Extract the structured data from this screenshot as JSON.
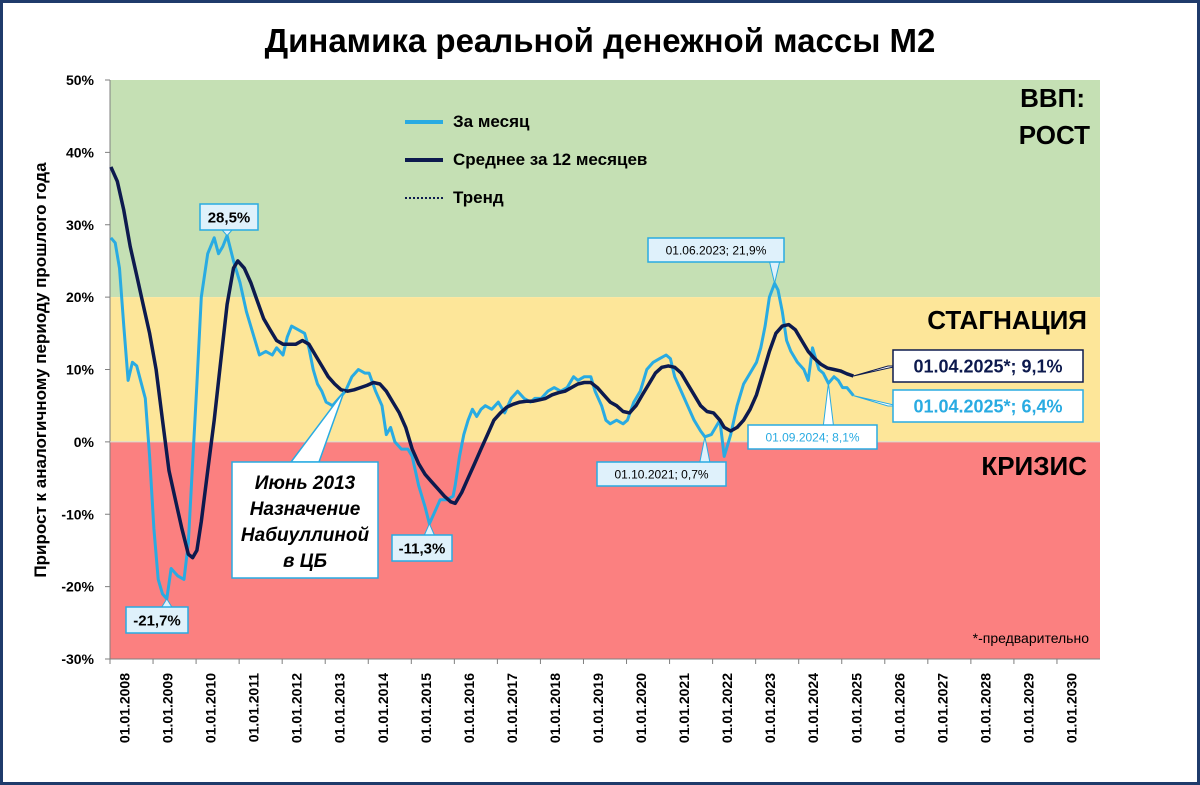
{
  "chart_data": {
    "type": "line",
    "title": "Динамика реальной денежной массы М2",
    "ylabel": "Прирост к аналогичному периоду прошлого года",
    "ylim": [
      -30,
      50
    ],
    "y_ticks": [
      -30,
      -20,
      -10,
      0,
      10,
      20,
      30,
      40,
      50
    ],
    "y_tick_labels": [
      "-30%",
      "-20%",
      "-10%",
      "0%",
      "10%",
      "20%",
      "30%",
      "40%",
      "50%"
    ],
    "x_tick_labels": [
      "01.01.2008",
      "01.01.2009",
      "01.01.2010",
      "01.01.2011",
      "01.01.2012",
      "01.01.2013",
      "01.01.2014",
      "01.01.2015",
      "01.01.2016",
      "01.01.2017",
      "01.01.2018",
      "01.01.2019",
      "01.01.2020",
      "01.01.2021",
      "01.01.2022",
      "01.01.2023",
      "01.01.2024",
      "01.01.2025",
      "01.01.2026",
      "01.01.2027",
      "01.01.2028",
      "01.01.2029",
      "01.01.2030"
    ],
    "zones": [
      {
        "label": "ВВП:",
        "label2": "РОСТ",
        "from": 20,
        "to": 50,
        "color": "#c5e0b4"
      },
      {
        "label": "СТАГНАЦИЯ",
        "from": 0,
        "to": 20,
        "color": "#fde699"
      },
      {
        "label": "КРИЗИС",
        "from": -30,
        "to": 0,
        "color": "#fb8080"
      }
    ],
    "series": [
      {
        "name": "За месяц",
        "color": "#29abe2",
        "points": [
          [
            2008.0,
            28.2
          ],
          [
            2008.1,
            27.5
          ],
          [
            2008.2,
            24.0
          ],
          [
            2008.3,
            16.0
          ],
          [
            2008.4,
            8.5
          ],
          [
            2008.5,
            11.0
          ],
          [
            2008.6,
            10.5
          ],
          [
            2008.8,
            6.0
          ],
          [
            2008.9,
            -2.0
          ],
          [
            2009.0,
            -12.0
          ],
          [
            2009.1,
            -19.0
          ],
          [
            2009.2,
            -21.0
          ],
          [
            2009.3,
            -21.7
          ],
          [
            2009.4,
            -17.5
          ],
          [
            2009.55,
            -18.5
          ],
          [
            2009.7,
            -19.0
          ],
          [
            2009.8,
            -14.0
          ],
          [
            2009.9,
            -3.0
          ],
          [
            2010.0,
            8.0
          ],
          [
            2010.1,
            20.0
          ],
          [
            2010.25,
            26.0
          ],
          [
            2010.4,
            28.2
          ],
          [
            2010.5,
            26.0
          ],
          [
            2010.6,
            27.0
          ],
          [
            2010.7,
            28.5
          ],
          [
            2010.85,
            25.0
          ],
          [
            2011.0,
            22.0
          ],
          [
            2011.15,
            18.0
          ],
          [
            2011.3,
            15.0
          ],
          [
            2011.45,
            12.0
          ],
          [
            2011.6,
            12.5
          ],
          [
            2011.75,
            12.0
          ],
          [
            2011.85,
            13.0
          ],
          [
            2012.0,
            12.0
          ],
          [
            2012.1,
            14.5
          ],
          [
            2012.2,
            16.0
          ],
          [
            2012.35,
            15.5
          ],
          [
            2012.5,
            15.0
          ],
          [
            2012.6,
            13.0
          ],
          [
            2012.7,
            10.0
          ],
          [
            2012.8,
            8.0
          ],
          [
            2012.9,
            7.0
          ],
          [
            2013.0,
            5.5
          ],
          [
            2013.15,
            5.0
          ],
          [
            2013.3,
            6.0
          ],
          [
            2013.45,
            7.0
          ],
          [
            2013.6,
            9.0
          ],
          [
            2013.75,
            10.0
          ],
          [
            2013.9,
            9.5
          ],
          [
            2014.0,
            9.5
          ],
          [
            2014.15,
            7.0
          ],
          [
            2014.3,
            5.0
          ],
          [
            2014.4,
            1.0
          ],
          [
            2014.5,
            2.0
          ],
          [
            2014.6,
            0.0
          ],
          [
            2014.75,
            -1.0
          ],
          [
            2014.9,
            -1.0
          ],
          [
            2015.0,
            -2.0
          ],
          [
            2015.15,
            -6.0
          ],
          [
            2015.3,
            -9.0
          ],
          [
            2015.4,
            -11.3
          ],
          [
            2015.5,
            -10.0
          ],
          [
            2015.65,
            -8.0
          ],
          [
            2015.8,
            -8.0
          ],
          [
            2015.95,
            -7.5
          ],
          [
            2016.0,
            -6.0
          ],
          [
            2016.1,
            -2.0
          ],
          [
            2016.2,
            1.0
          ],
          [
            2016.3,
            3.0
          ],
          [
            2016.4,
            4.5
          ],
          [
            2016.5,
            3.5
          ],
          [
            2016.6,
            4.5
          ],
          [
            2016.7,
            5.0
          ],
          [
            2016.85,
            4.5
          ],
          [
            2017.0,
            5.5
          ],
          [
            2017.15,
            4.0
          ],
          [
            2017.3,
            6.0
          ],
          [
            2017.45,
            7.0
          ],
          [
            2017.6,
            6.0
          ],
          [
            2017.75,
            5.5
          ],
          [
            2017.85,
            6.0
          ],
          [
            2018.0,
            6.0
          ],
          [
            2018.15,
            7.0
          ],
          [
            2018.3,
            7.5
          ],
          [
            2018.45,
            7.0
          ],
          [
            2018.6,
            7.5
          ],
          [
            2018.75,
            9.0
          ],
          [
            2018.85,
            8.5
          ],
          [
            2019.0,
            9.0
          ],
          [
            2019.15,
            9.0
          ],
          [
            2019.25,
            7.0
          ],
          [
            2019.4,
            5.0
          ],
          [
            2019.5,
            3.0
          ],
          [
            2019.6,
            2.5
          ],
          [
            2019.75,
            3.0
          ],
          [
            2019.9,
            2.5
          ],
          [
            2020.0,
            3.0
          ],
          [
            2020.15,
            5.5
          ],
          [
            2020.3,
            7.0
          ],
          [
            2020.45,
            10.0
          ],
          [
            2020.6,
            11.0
          ],
          [
            2020.75,
            11.5
          ],
          [
            2020.9,
            12.0
          ],
          [
            2021.0,
            11.5
          ],
          [
            2021.1,
            9.0
          ],
          [
            2021.25,
            7.0
          ],
          [
            2021.4,
            5.0
          ],
          [
            2021.55,
            3.0
          ],
          [
            2021.7,
            1.5
          ],
          [
            2021.8,
            0.7
          ],
          [
            2021.95,
            1.0
          ],
          [
            2022.05,
            2.0
          ],
          [
            2022.15,
            3.0
          ],
          [
            2022.25,
            -2.0
          ],
          [
            2022.3,
            -1.0
          ],
          [
            2022.4,
            1.0
          ],
          [
            2022.55,
            5.0
          ],
          [
            2022.7,
            8.0
          ],
          [
            2022.85,
            9.5
          ],
          [
            2023.0,
            11.0
          ],
          [
            2023.1,
            13.0
          ],
          [
            2023.2,
            16.0
          ],
          [
            2023.3,
            20.0
          ],
          [
            2023.42,
            21.9
          ],
          [
            2023.5,
            21.0
          ],
          [
            2023.6,
            18.0
          ],
          [
            2023.7,
            14.0
          ],
          [
            2023.8,
            12.5
          ],
          [
            2023.95,
            11.0
          ],
          [
            2024.1,
            10.0
          ],
          [
            2024.2,
            8.5
          ],
          [
            2024.3,
            13.0
          ],
          [
            2024.45,
            10.0
          ],
          [
            2024.55,
            9.5
          ],
          [
            2024.67,
            8.1
          ],
          [
            2024.8,
            9.0
          ],
          [
            2024.9,
            8.5
          ],
          [
            2025.0,
            7.5
          ],
          [
            2025.1,
            7.5
          ],
          [
            2025.25,
            6.4
          ]
        ]
      },
      {
        "name": "Среднее за 12 месяцев",
        "color": "#0d1a4e",
        "points": [
          [
            2008.0,
            38.0
          ],
          [
            2008.15,
            36.0
          ],
          [
            2008.3,
            32.0
          ],
          [
            2008.45,
            27.0
          ],
          [
            2008.6,
            23.0
          ],
          [
            2008.75,
            19.0
          ],
          [
            2008.9,
            15.0
          ],
          [
            2009.05,
            10.0
          ],
          [
            2009.2,
            3.0
          ],
          [
            2009.35,
            -4.0
          ],
          [
            2009.5,
            -8.0
          ],
          [
            2009.65,
            -12.0
          ],
          [
            2009.8,
            -15.5
          ],
          [
            2009.9,
            -16.0
          ],
          [
            2010.0,
            -15.0
          ],
          [
            2010.1,
            -11.0
          ],
          [
            2010.25,
            -4.0
          ],
          [
            2010.4,
            3.0
          ],
          [
            2010.55,
            11.0
          ],
          [
            2010.7,
            19.0
          ],
          [
            2010.85,
            24.0
          ],
          [
            2010.95,
            25.0
          ],
          [
            2011.1,
            24.0
          ],
          [
            2011.25,
            22.0
          ],
          [
            2011.4,
            19.5
          ],
          [
            2011.55,
            17.0
          ],
          [
            2011.7,
            15.5
          ],
          [
            2011.85,
            14.0
          ],
          [
            2012.0,
            13.5
          ],
          [
            2012.15,
            13.5
          ],
          [
            2012.3,
            13.5
          ],
          [
            2012.45,
            14.0
          ],
          [
            2012.6,
            13.5
          ],
          [
            2012.75,
            12.0
          ],
          [
            2012.9,
            10.5
          ],
          [
            2013.05,
            9.0
          ],
          [
            2013.2,
            8.0
          ],
          [
            2013.35,
            7.2
          ],
          [
            2013.5,
            7.0
          ],
          [
            2013.65,
            7.2
          ],
          [
            2013.8,
            7.5
          ],
          [
            2013.95,
            7.8
          ],
          [
            2014.1,
            8.2
          ],
          [
            2014.25,
            8.0
          ],
          [
            2014.4,
            7.0
          ],
          [
            2014.55,
            5.5
          ],
          [
            2014.7,
            4.0
          ],
          [
            2014.85,
            2.0
          ],
          [
            2015.0,
            -1.0
          ],
          [
            2015.15,
            -3.0
          ],
          [
            2015.3,
            -4.5
          ],
          [
            2015.45,
            -5.5
          ],
          [
            2015.6,
            -6.5
          ],
          [
            2015.75,
            -7.5
          ],
          [
            2015.9,
            -8.3
          ],
          [
            2016.0,
            -8.5
          ],
          [
            2016.15,
            -7.0
          ],
          [
            2016.3,
            -5.0
          ],
          [
            2016.45,
            -3.0
          ],
          [
            2016.6,
            -1.0
          ],
          [
            2016.75,
            1.0
          ],
          [
            2016.9,
            3.0
          ],
          [
            2017.05,
            4.0
          ],
          [
            2017.2,
            4.8
          ],
          [
            2017.35,
            5.2
          ],
          [
            2017.5,
            5.5
          ],
          [
            2017.65,
            5.6
          ],
          [
            2017.8,
            5.6
          ],
          [
            2017.95,
            5.8
          ],
          [
            2018.1,
            6.0
          ],
          [
            2018.25,
            6.5
          ],
          [
            2018.4,
            6.8
          ],
          [
            2018.55,
            7.0
          ],
          [
            2018.7,
            7.5
          ],
          [
            2018.85,
            8.0
          ],
          [
            2019.0,
            8.2
          ],
          [
            2019.15,
            8.2
          ],
          [
            2019.3,
            7.5
          ],
          [
            2019.45,
            6.5
          ],
          [
            2019.6,
            5.5
          ],
          [
            2019.75,
            5.0
          ],
          [
            2019.9,
            4.2
          ],
          [
            2020.05,
            4.0
          ],
          [
            2020.2,
            5.0
          ],
          [
            2020.35,
            6.5
          ],
          [
            2020.5,
            8.0
          ],
          [
            2020.65,
            9.5
          ],
          [
            2020.8,
            10.3
          ],
          [
            2020.95,
            10.5
          ],
          [
            2021.1,
            10.3
          ],
          [
            2021.25,
            9.5
          ],
          [
            2021.4,
            8.0
          ],
          [
            2021.55,
            6.5
          ],
          [
            2021.7,
            5.0
          ],
          [
            2021.85,
            4.2
          ],
          [
            2022.0,
            4.0
          ],
          [
            2022.15,
            3.0
          ],
          [
            2022.25,
            2.0
          ],
          [
            2022.4,
            1.5
          ],
          [
            2022.55,
            2.0
          ],
          [
            2022.7,
            3.0
          ],
          [
            2022.85,
            4.5
          ],
          [
            2023.0,
            6.5
          ],
          [
            2023.15,
            9.5
          ],
          [
            2023.3,
            12.5
          ],
          [
            2023.45,
            15.0
          ],
          [
            2023.6,
            16.0
          ],
          [
            2023.75,
            16.2
          ],
          [
            2023.9,
            15.5
          ],
          [
            2024.05,
            14.0
          ],
          [
            2024.2,
            12.5
          ],
          [
            2024.35,
            11.5
          ],
          [
            2024.5,
            10.7
          ],
          [
            2024.65,
            10.2
          ],
          [
            2024.8,
            10.0
          ],
          [
            2024.95,
            9.8
          ],
          [
            2025.1,
            9.4
          ],
          [
            2025.25,
            9.1
          ]
        ]
      }
    ],
    "legend": [
      {
        "name": "За месяц",
        "color": "#29abe2",
        "style": "solid"
      },
      {
        "name": "Среднее за 12 месяцев",
        "color": "#0d1a4e",
        "style": "solid"
      },
      {
        "name": "Тренд",
        "color": "#0d1a4e",
        "style": "dotted"
      }
    ],
    "legend_position": "top-center",
    "annotations": [
      {
        "text": "28,5%",
        "x": 2010.7,
        "y": 28.5,
        "style": "light"
      },
      {
        "text": "-21,7%",
        "x": 2009.3,
        "y": -21.7,
        "style": "light"
      },
      {
        "text": "-11,3%",
        "x": 2015.4,
        "y": -11.3,
        "style": "light"
      },
      {
        "text": "01.06.2023; 21,9%",
        "x": 2023.42,
        "y": 21.9,
        "style": "light-small"
      },
      {
        "text": "01.10.2021; 0,7%",
        "x": 2021.8,
        "y": 0.7,
        "style": "light-small"
      },
      {
        "text": "01.09.2024; 8,1%",
        "x": 2024.67,
        "y": 8.1,
        "style": "cyan-small"
      },
      {
        "text": "01.04.2025*; 9,1%",
        "x": 2025.25,
        "y": 9.1,
        "style": "navy-big"
      },
      {
        "text": "01.04.2025*; 6,4%",
        "x": 2025.25,
        "y": 6.4,
        "style": "cyan-big"
      }
    ],
    "callout": {
      "lines": [
        "Июнь 2013",
        "Назначение",
        "Набиуллиной",
        "в ЦБ"
      ],
      "x": 2013.42,
      "y": 7.0
    },
    "footnote": "*-предварительно"
  }
}
